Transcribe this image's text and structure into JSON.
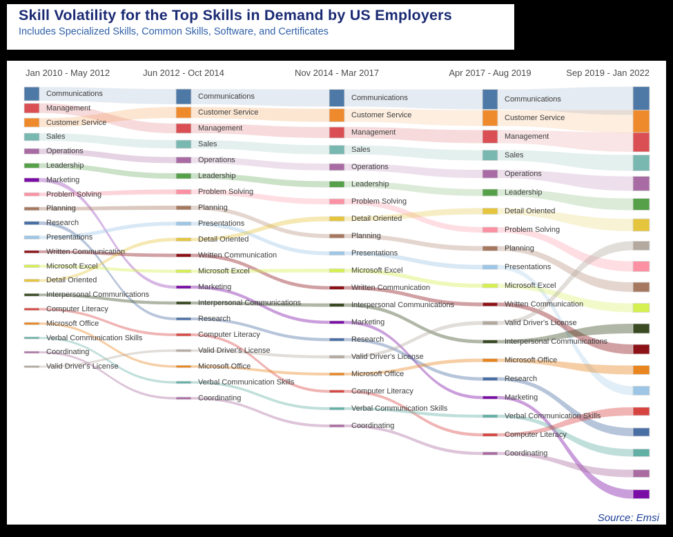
{
  "title": "Skill Volatility for the Top Skills in Demand by US Employers",
  "subtitle": "Includes Specialized Skills, Common Skills, Software, and Certificates",
  "source": "Source: Emsi",
  "chart_data": {
    "type": "sankey",
    "title": "Skill Volatility for the Top Skills in Demand by US Employers",
    "subtitle": "Includes Specialized Skills, Common Skills, Software, and Certificates",
    "legend_position": "none",
    "last_column_labels_visible": false,
    "columns": [
      {
        "header": "Jan 2010 - May 2012",
        "skills": [
          "Communications",
          "Management",
          "Customer Service",
          "Sales",
          "Operations",
          "Leadership",
          "Marketing",
          "Problem Solving",
          "Planning",
          "Research",
          "Presentations",
          "Written Communication",
          "Microsoft Excel",
          "Detail Oriented",
          "Interpersonal Communications",
          "Computer Literacy",
          "Microsoft Office",
          "Verbal Communication Skills",
          "Coordinating",
          "Valid Driver's License"
        ],
        "node_heights": [
          20,
          14,
          13,
          11,
          8,
          7,
          6,
          5,
          5,
          5,
          5,
          4,
          4,
          4,
          4,
          3.5,
          3.5,
          3,
          3,
          3
        ]
      },
      {
        "header": "Jun 2012 - Oct 2014",
        "skills": [
          "Communications",
          "Customer Service",
          "Management",
          "Sales",
          "Operations",
          "Leadership",
          "Problem Solving",
          "Planning",
          "Presentations",
          "Detail Oriented",
          "Written Communication",
          "Microsoft Excel",
          "Marketing",
          "Interpersonal Communications",
          "Research",
          "Computer Literacy",
          "Valid Driver's License",
          "Microsoft Office",
          "Verbal Communication Skills",
          "Coordinating"
        ],
        "node_heights": [
          22,
          16,
          14,
          12,
          9,
          8,
          7,
          6,
          5.5,
          5,
          5,
          4.5,
          4.5,
          4.5,
          4,
          4,
          3.5,
          3.5,
          3.5,
          3.5
        ]
      },
      {
        "header": "Nov 2014 - Mar 2017",
        "skills": [
          "Communications",
          "Customer Service",
          "Management",
          "Sales",
          "Operations",
          "Leadership",
          "Problem Solving",
          "Detail Oriented",
          "Planning",
          "Presentations",
          "Microsoft Excel",
          "Written Communication",
          "Interpersonal Communications",
          "Marketing",
          "Research",
          "Valid Driver's License",
          "Microsoft Office",
          "Computer Literacy",
          "Verbal Communication Skills",
          "Coordinating"
        ],
        "node_heights": [
          25,
          19,
          16,
          13,
          10,
          9,
          8,
          7,
          6,
          5.5,
          5.5,
          5,
          5,
          4.5,
          4.5,
          4.5,
          4,
          4,
          4,
          4
        ]
      },
      {
        "header": "Apr 2017 - Aug 2019",
        "skills": [
          "Communications",
          "Customer Service",
          "Management",
          "Sales",
          "Operations",
          "Leadership",
          "Detail Oriented",
          "Problem Solving",
          "Planning",
          "Presentations",
          "Microsoft Excel",
          "Written Communication",
          "Valid Driver's License",
          "Interpersonal Communications",
          "Microsoft Office",
          "Research",
          "Marketing",
          "Verbal Communication Skills",
          "Computer Literacy",
          "Coordinating"
        ],
        "node_heights": [
          29,
          23,
          19,
          15,
          12,
          10,
          9,
          8,
          7,
          6.5,
          6,
          5.5,
          5.5,
          5,
          5,
          5,
          4.5,
          4.5,
          4.5,
          4.5
        ]
      },
      {
        "header": "Sep 2019 - Jan 2022",
        "skills": [
          "Communications",
          "Customer Service",
          "Management",
          "Sales",
          "Operations",
          "Leadership",
          "Detail Oriented",
          "Valid Driver's License",
          "Problem Solving",
          "Planning",
          "Microsoft Excel",
          "Interpersonal Communications",
          "Written Communication",
          "Microsoft Office",
          "Presentations",
          "Computer Literacy",
          "Research",
          "Verbal Communication Skills",
          "Coordinating",
          "Marketing"
        ],
        "node_heights": [
          41,
          33,
          28,
          23,
          21,
          17,
          18,
          13,
          15,
          14,
          13,
          14,
          14,
          13,
          13,
          12,
          12,
          11,
          11,
          13
        ]
      }
    ],
    "skill_colors": {
      "Communications": "#4e79a7",
      "Customer Service": "#ef8a2c",
      "Management": "#da4f54",
      "Sales": "#79b7b1",
      "Operations": "#a86ba3",
      "Leadership": "#55a049",
      "Marketing": "#7a0da5",
      "Problem Solving": "#fb91a2",
      "Planning": "#a5785f",
      "Research": "#4a6fa5",
      "Presentations": "#9dc6e6",
      "Written Communication": "#8c1218",
      "Microsoft Excel": "#d4f050",
      "Detail Oriented": "#e5c53e",
      "Interpersonal Communications": "#3a4a23",
      "Computer Literacy": "#d64440",
      "Microsoft Office": "#e9851e",
      "Verbal Communication Skills": "#62afa6",
      "Coordinating": "#aa6ba1",
      "Valid Driver's License": "#b3a99f"
    }
  }
}
